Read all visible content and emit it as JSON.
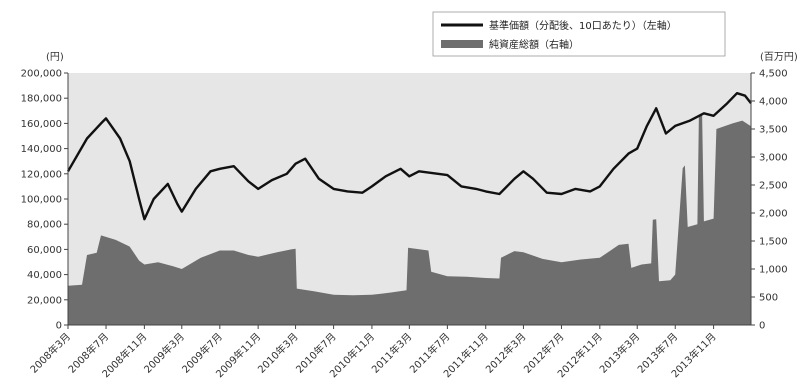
{
  "chart_data": {
    "type": "line",
    "title": "",
    "left_axis": {
      "unit": "(円)",
      "min": 0,
      "max": 200000,
      "ticks": [
        "0",
        "20,000",
        "40,000",
        "60,000",
        "80,000",
        "100,000",
        "120,000",
        "140,000",
        "160,000",
        "180,000",
        "200,000"
      ]
    },
    "right_axis": {
      "unit": "(百万円)",
      "min": 0,
      "max": 4500,
      "ticks": [
        "0",
        "500",
        "1,000",
        "1,500",
        "2,000",
        "2,500",
        "3,000",
        "3,500",
        "4,000",
        "4,500"
      ]
    },
    "x_range": [
      "2008-03-01",
      "2014-03-01"
    ],
    "x_tick_labels": [
      {
        "date": "2008-03-01",
        "label": "2008年3月"
      },
      {
        "date": "2008-07-01",
        "label": "2008年7月"
      },
      {
        "date": "2008-11-01",
        "label": "2008年11月"
      },
      {
        "date": "2009-03-01",
        "label": "2009年3月"
      },
      {
        "date": "2009-07-01",
        "label": "2009年7月"
      },
      {
        "date": "2009-11-01",
        "label": "2009年11月"
      },
      {
        "date": "2010-03-01",
        "label": "2010年3月"
      },
      {
        "date": "2010-07-01",
        "label": "2010年7月"
      },
      {
        "date": "2010-11-01",
        "label": "2010年11月"
      },
      {
        "date": "2011-03-01",
        "label": "2011年3月"
      },
      {
        "date": "2011-07-01",
        "label": "2011年7月"
      },
      {
        "date": "2011-11-01",
        "label": "2011年11月"
      },
      {
        "date": "2012-03-01",
        "label": "2012年3月"
      },
      {
        "date": "2012-07-01",
        "label": "2012年7月"
      },
      {
        "date": "2012-11-01",
        "label": "2012年11月"
      },
      {
        "date": "2013-03-01",
        "label": "2013年3月"
      },
      {
        "date": "2013-07-01",
        "label": "2013年7月"
      },
      {
        "date": "2013-11-01",
        "label": "2013年11月"
      }
    ],
    "series": [
      {
        "name": "基準価額（分配後、10口あたり）（左軸）",
        "type": "line",
        "axis": "left",
        "color": "#111111",
        "points": [
          [
            "2008-03-01",
            122000
          ],
          [
            "2008-05-01",
            148000
          ],
          [
            "2008-06-15",
            160000
          ],
          [
            "2008-07-01",
            164000
          ],
          [
            "2008-08-15",
            148000
          ],
          [
            "2008-09-15",
            130000
          ],
          [
            "2008-10-15",
            100000
          ],
          [
            "2008-11-01",
            84000
          ],
          [
            "2008-12-01",
            100000
          ],
          [
            "2009-01-15",
            112000
          ],
          [
            "2009-02-15",
            96000
          ],
          [
            "2009-03-01",
            90000
          ],
          [
            "2009-04-15",
            108000
          ],
          [
            "2009-06-01",
            122000
          ],
          [
            "2009-07-01",
            124000
          ],
          [
            "2009-08-15",
            126000
          ],
          [
            "2009-10-01",
            114000
          ],
          [
            "2009-11-01",
            108000
          ],
          [
            "2009-12-15",
            115000
          ],
          [
            "2010-02-01",
            120000
          ],
          [
            "2010-03-01",
            128000
          ],
          [
            "2010-04-01",
            132000
          ],
          [
            "2010-05-15",
            116000
          ],
          [
            "2010-07-01",
            108000
          ],
          [
            "2010-08-15",
            106000
          ],
          [
            "2010-10-01",
            105000
          ],
          [
            "2010-11-01",
            110000
          ],
          [
            "2010-12-15",
            118000
          ],
          [
            "2011-02-01",
            124000
          ],
          [
            "2011-03-01",
            118000
          ],
          [
            "2011-04-01",
            122000
          ],
          [
            "2011-06-01",
            120000
          ],
          [
            "2011-07-01",
            119000
          ],
          [
            "2011-08-15",
            110000
          ],
          [
            "2011-10-01",
            108000
          ],
          [
            "2011-11-01",
            106000
          ],
          [
            "2011-12-15",
            104000
          ],
          [
            "2012-02-01",
            116000
          ],
          [
            "2012-03-01",
            122000
          ],
          [
            "2012-04-01",
            116000
          ],
          [
            "2012-05-15",
            105000
          ],
          [
            "2012-07-01",
            104000
          ],
          [
            "2012-08-15",
            108000
          ],
          [
            "2012-10-01",
            106000
          ],
          [
            "2012-11-01",
            110000
          ],
          [
            "2012-12-15",
            124000
          ],
          [
            "2013-02-01",
            136000
          ],
          [
            "2013-03-01",
            140000
          ],
          [
            "2013-04-01",
            158000
          ],
          [
            "2013-05-01",
            172000
          ],
          [
            "2013-06-01",
            152000
          ],
          [
            "2013-07-01",
            158000
          ],
          [
            "2013-08-15",
            162000
          ],
          [
            "2013-10-01",
            168000
          ],
          [
            "2013-11-01",
            166000
          ],
          [
            "2013-12-15",
            176000
          ],
          [
            "2014-01-15",
            184000
          ],
          [
            "2014-02-10",
            182000
          ],
          [
            "2014-03-01",
            176000
          ]
        ]
      },
      {
        "name": "純資産総額（右軸）",
        "type": "area",
        "axis": "right",
        "color": "#6e6e6e",
        "points": [
          [
            "2008-03-01",
            700
          ],
          [
            "2008-04-15",
            720
          ],
          [
            "2008-05-01",
            1250
          ],
          [
            "2008-06-01",
            1290
          ],
          [
            "2008-06-15",
            1600
          ],
          [
            "2008-08-01",
            1520
          ],
          [
            "2008-09-15",
            1400
          ],
          [
            "2008-10-15",
            1150
          ],
          [
            "2008-11-01",
            1080
          ],
          [
            "2008-12-15",
            1120
          ],
          [
            "2009-02-01",
            1050
          ],
          [
            "2009-03-01",
            1000
          ],
          [
            "2009-05-01",
            1200
          ],
          [
            "2009-07-01",
            1330
          ],
          [
            "2009-08-15",
            1330
          ],
          [
            "2009-10-01",
            1250
          ],
          [
            "2009-11-01",
            1220
          ],
          [
            "2010-01-01",
            1300
          ],
          [
            "2010-02-15",
            1350
          ],
          [
            "2010-03-01",
            1360
          ],
          [
            "2010-03-05",
            650
          ],
          [
            "2010-05-01",
            600
          ],
          [
            "2010-07-01",
            540
          ],
          [
            "2010-09-01",
            530
          ],
          [
            "2010-11-01",
            540
          ],
          [
            "2011-01-01",
            580
          ],
          [
            "2011-02-20",
            620
          ],
          [
            "2011-02-25",
            1380
          ],
          [
            "2011-05-01",
            1330
          ],
          [
            "2011-05-10",
            950
          ],
          [
            "2011-07-01",
            870
          ],
          [
            "2011-09-01",
            860
          ],
          [
            "2011-11-01",
            840
          ],
          [
            "2011-12-15",
            830
          ],
          [
            "2011-12-20",
            1200
          ],
          [
            "2012-02-01",
            1320
          ],
          [
            "2012-03-01",
            1300
          ],
          [
            "2012-05-01",
            1180
          ],
          [
            "2012-07-01",
            1120
          ],
          [
            "2012-09-01",
            1170
          ],
          [
            "2012-11-01",
            1200
          ],
          [
            "2013-01-01",
            1430
          ],
          [
            "2013-02-01",
            1450
          ],
          [
            "2013-02-10",
            1020
          ],
          [
            "2013-03-15",
            1080
          ],
          [
            "2013-04-15",
            1100
          ],
          [
            "2013-04-20",
            1880
          ],
          [
            "2013-05-01",
            1890
          ],
          [
            "2013-05-10",
            780
          ],
          [
            "2013-06-15",
            800
          ],
          [
            "2013-07-01",
            900
          ],
          [
            "2013-07-25",
            2800
          ],
          [
            "2013-08-01",
            2850
          ],
          [
            "2013-08-10",
            1750
          ],
          [
            "2013-09-10",
            1800
          ],
          [
            "2013-09-15",
            3750
          ],
          [
            "2013-09-25",
            3780
          ],
          [
            "2013-10-01",
            1850
          ],
          [
            "2013-11-01",
            1900
          ],
          [
            "2013-11-10",
            3500
          ],
          [
            "2014-01-01",
            3600
          ],
          [
            "2014-02-01",
            3650
          ],
          [
            "2014-03-01",
            3550
          ]
        ]
      }
    ],
    "legend_position": "top-right",
    "grid": false
  }
}
